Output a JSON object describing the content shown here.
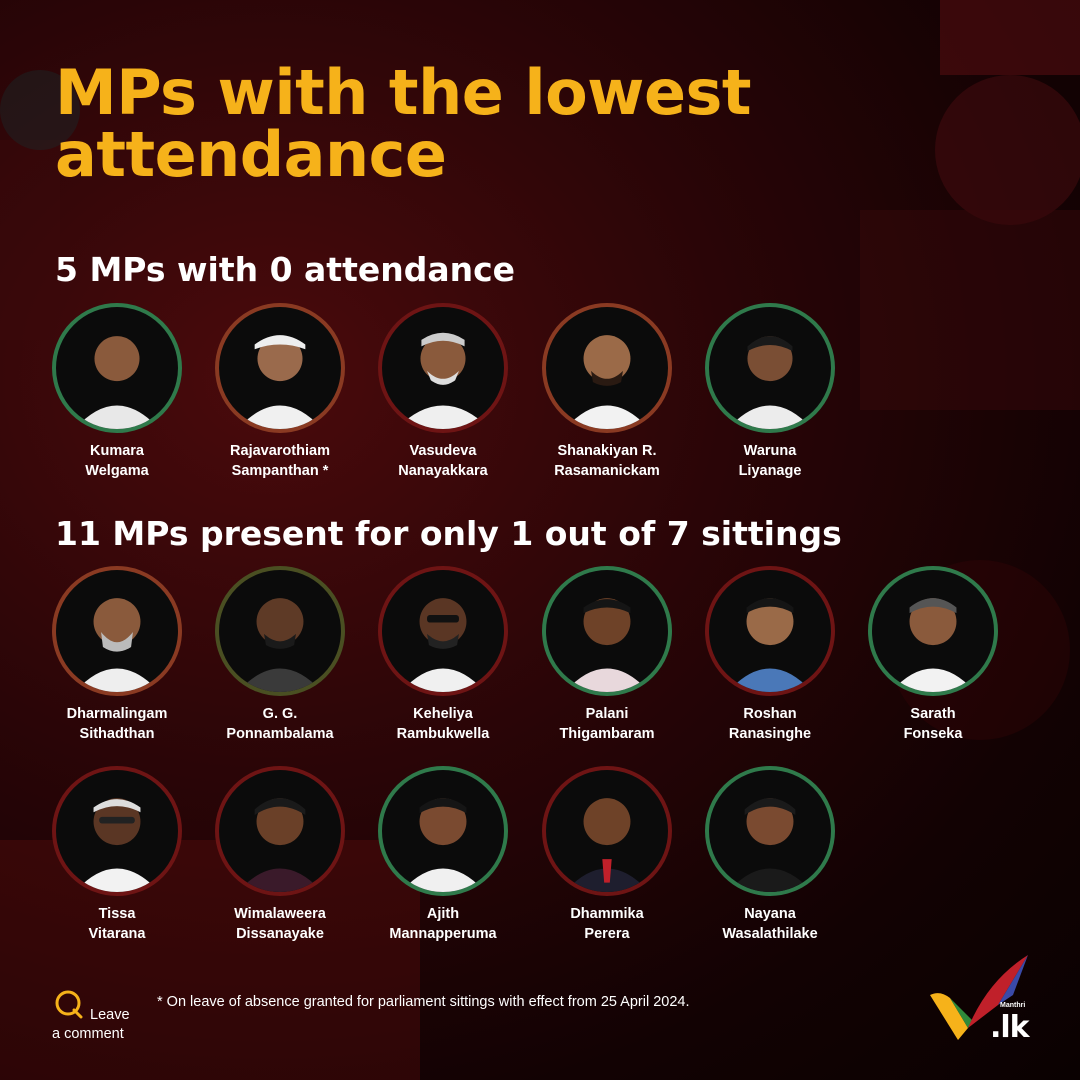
{
  "title": "MPs with the lowest attendance",
  "sections": [
    {
      "heading": "5 MPs with 0 attendance",
      "mps": [
        {
          "line1": "Kumara",
          "line2": "Welgama"
        },
        {
          "line1": "Rajavarothiam",
          "line2": "Sampanthan *"
        },
        {
          "line1": "Vasudeva",
          "line2": "Nanayakkara"
        },
        {
          "line1": "Shanakiyan R.",
          "line2": "Rasamanickam"
        },
        {
          "line1": "Waruna",
          "line2": "Liyanage"
        }
      ]
    },
    {
      "heading": "11 MPs present for only 1 out of 7 sittings",
      "mps": [
        {
          "line1": "Dharmalingam",
          "line2": "Sithadthan"
        },
        {
          "line1": "G. G.",
          "line2": "Ponnambalama"
        },
        {
          "line1": "Keheliya",
          "line2": "Rambukwella"
        },
        {
          "line1": "Palani",
          "line2": "Thigambaram"
        },
        {
          "line1": "Roshan",
          "line2": "Ranasinghe"
        },
        {
          "line1": "Sarath",
          "line2": "Fonseka"
        },
        {
          "line1": "Tissa",
          "line2": "Vitarana"
        },
        {
          "line1": "Wimalaweera",
          "line2": "Dissanayake"
        },
        {
          "line1": "Ajith",
          "line2": "Mannapperuma"
        },
        {
          "line1": "Dhammika",
          "line2": "Perera"
        },
        {
          "line1": "Nayana",
          "line2": "Wasalathilake"
        }
      ]
    }
  ],
  "comment": {
    "line1": "Leave",
    "line2": "a comment"
  },
  "footnote": "* On leave of absence granted for parliament sittings with effect from 25 April 2024.",
  "logo": {
    "text": ".lk",
    "small": "Manthri"
  },
  "colors": {
    "title": "#f6b21a",
    "ring_green": "#2f7a4b",
    "ring_brown": "#8a3a22",
    "ring_red": "#6e1414",
    "ring_olive": "#4a4f22"
  }
}
